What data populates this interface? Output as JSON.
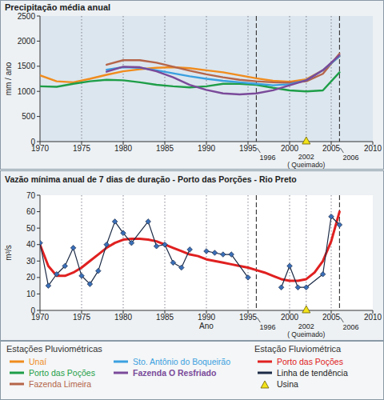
{
  "chart_data": [
    {
      "type": "line",
      "title": "Precipitação média anual",
      "y_label": "mm / ano",
      "legend_title": "Estações Pluviométricas",
      "legend": "bottom",
      "grid": true,
      "xlim": [
        1970,
        2010
      ],
      "xticks": [
        1970,
        1975,
        1980,
        1985,
        1990,
        1995,
        2000,
        2005,
        2010
      ],
      "ylim": [
        0,
        2500
      ],
      "yticks": [
        0,
        500,
        1000,
        1500,
        2000,
        2500
      ],
      "x": [
        1970,
        1972,
        1974,
        1976,
        1978,
        1980,
        1982,
        1984,
        1986,
        1988,
        1990,
        1992,
        1994,
        1996,
        1998,
        2000,
        2002,
        2004,
        2006
      ],
      "series": [
        {
          "name": "Unaí",
          "color": "#f08c1e",
          "values": [
            1320,
            1200,
            1180,
            1250,
            1330,
            1400,
            1440,
            1470,
            1480,
            1460,
            1420,
            1380,
            1320,
            1260,
            1210,
            1190,
            1240,
            1420,
            1700
          ]
        },
        {
          "name": "Porto das Poções",
          "color": "#1e9e48",
          "values": [
            1100,
            1090,
            1150,
            1200,
            1230,
            1220,
            1180,
            1130,
            1100,
            1080,
            1100,
            1150,
            1150,
            1130,
            1070,
            1020,
            1000,
            1020,
            1380
          ]
        },
        {
          "name": "Fazenda Limeira",
          "color": "#b5654a",
          "values": [
            null,
            null,
            null,
            null,
            1530,
            1620,
            1620,
            1570,
            1490,
            1410,
            1340,
            1280,
            1230,
            1200,
            1180,
            1170,
            1200,
            1350,
            1750
          ]
        },
        {
          "name": "Sto. Antônio do Boqueirão",
          "color": "#3aa0e0",
          "values": [
            null,
            null,
            null,
            null,
            1430,
            1480,
            1470,
            1420,
            1360,
            1300,
            1250,
            1210,
            1180,
            1150,
            1120,
            1140,
            1220,
            1420,
            1700
          ]
        },
        {
          "name": "Fazenda O Resfriado",
          "color": "#7a4a9a",
          "values": [
            null,
            null,
            null,
            null,
            1390,
            1490,
            1480,
            1400,
            1280,
            1130,
            1030,
            960,
            940,
            960,
            1020,
            1120,
            1220,
            1420,
            1720
          ]
        }
      ],
      "vlines": [
        {
          "x": 1996,
          "label": "1996",
          "line_style": "dashed"
        },
        {
          "x": 2006,
          "label": "2006",
          "line_style": "dashed"
        }
      ],
      "annotations": [
        {
          "x": 2002,
          "label": "2002",
          "note": "( Queimado)",
          "marker": "triangle",
          "color": "#f2e21a"
        }
      ]
    },
    {
      "type": "line",
      "title": "Vazão mínima anual de 7 dias de duração - Porto das Porções - Rio Preto",
      "y_label": "m³/s",
      "x_label": "Ano",
      "legend_title": "Estação Fluviométrica",
      "legend": "bottom",
      "grid": true,
      "xlim": [
        1970,
        2010
      ],
      "xticks": [
        1970,
        1975,
        1980,
        1985,
        1990,
        1995,
        2000,
        2005,
        2010
      ],
      "ylim": [
        0,
        70
      ],
      "yticks": [
        0,
        10,
        20,
        30,
        40,
        50,
        60,
        70
      ],
      "series": [
        {
          "name": "Porto das Poções",
          "color": "#e02020",
          "x": [
            1970,
            1971,
            1972,
            1973,
            1974,
            1975,
            1976,
            1977,
            1978,
            1979,
            1980,
            1981,
            1982,
            1983,
            1984,
            1985,
            1986,
            1987,
            1988,
            1989,
            1990,
            1991,
            1992,
            1993,
            1994,
            1995,
            1996,
            1997,
            1998,
            1999,
            2000,
            2001,
            2002,
            2003,
            2004,
            2005,
            2006
          ],
          "values": [
            40,
            27,
            21,
            21,
            23,
            26,
            30,
            34,
            38,
            41,
            43,
            43.5,
            43.5,
            43,
            42,
            40,
            38,
            36,
            34,
            33,
            31,
            30,
            29,
            28,
            27,
            26,
            24.5,
            23,
            21,
            19,
            18,
            18,
            19,
            23,
            30,
            42,
            60
          ]
        },
        {
          "name": "Linha de tendência",
          "color": "#1c2b46",
          "marker": "diamond",
          "x": [
            1970,
            1971,
            1972,
            1973,
            1974,
            1975,
            1976,
            1977,
            1978,
            1979,
            1980,
            1981,
            1983,
            1984,
            1985,
            1986,
            1987,
            1988,
            1989,
            1990,
            1991,
            1992,
            1993,
            1995,
            1996,
            1999,
            2000,
            2001,
            2002,
            2004,
            2005,
            2006
          ],
          "values": [
            41,
            15,
            22,
            27,
            38,
            21,
            16,
            24,
            40,
            54,
            47,
            41,
            54,
            39,
            40,
            29,
            26,
            37,
            null,
            36,
            35,
            34,
            34,
            20,
            null,
            14,
            27,
            14,
            14,
            22,
            57,
            52
          ]
        }
      ],
      "vlines": [
        {
          "x": 1996,
          "label": "1996",
          "line_style": "dashed"
        },
        {
          "x": 2006,
          "label": "2006",
          "line_style": "dashed"
        }
      ],
      "annotations": [
        {
          "x": 2002,
          "label": "2002",
          "note": "( Queimado)",
          "name": "Usina",
          "marker": "triangle",
          "color": "#f2e21a"
        }
      ]
    }
  ]
}
